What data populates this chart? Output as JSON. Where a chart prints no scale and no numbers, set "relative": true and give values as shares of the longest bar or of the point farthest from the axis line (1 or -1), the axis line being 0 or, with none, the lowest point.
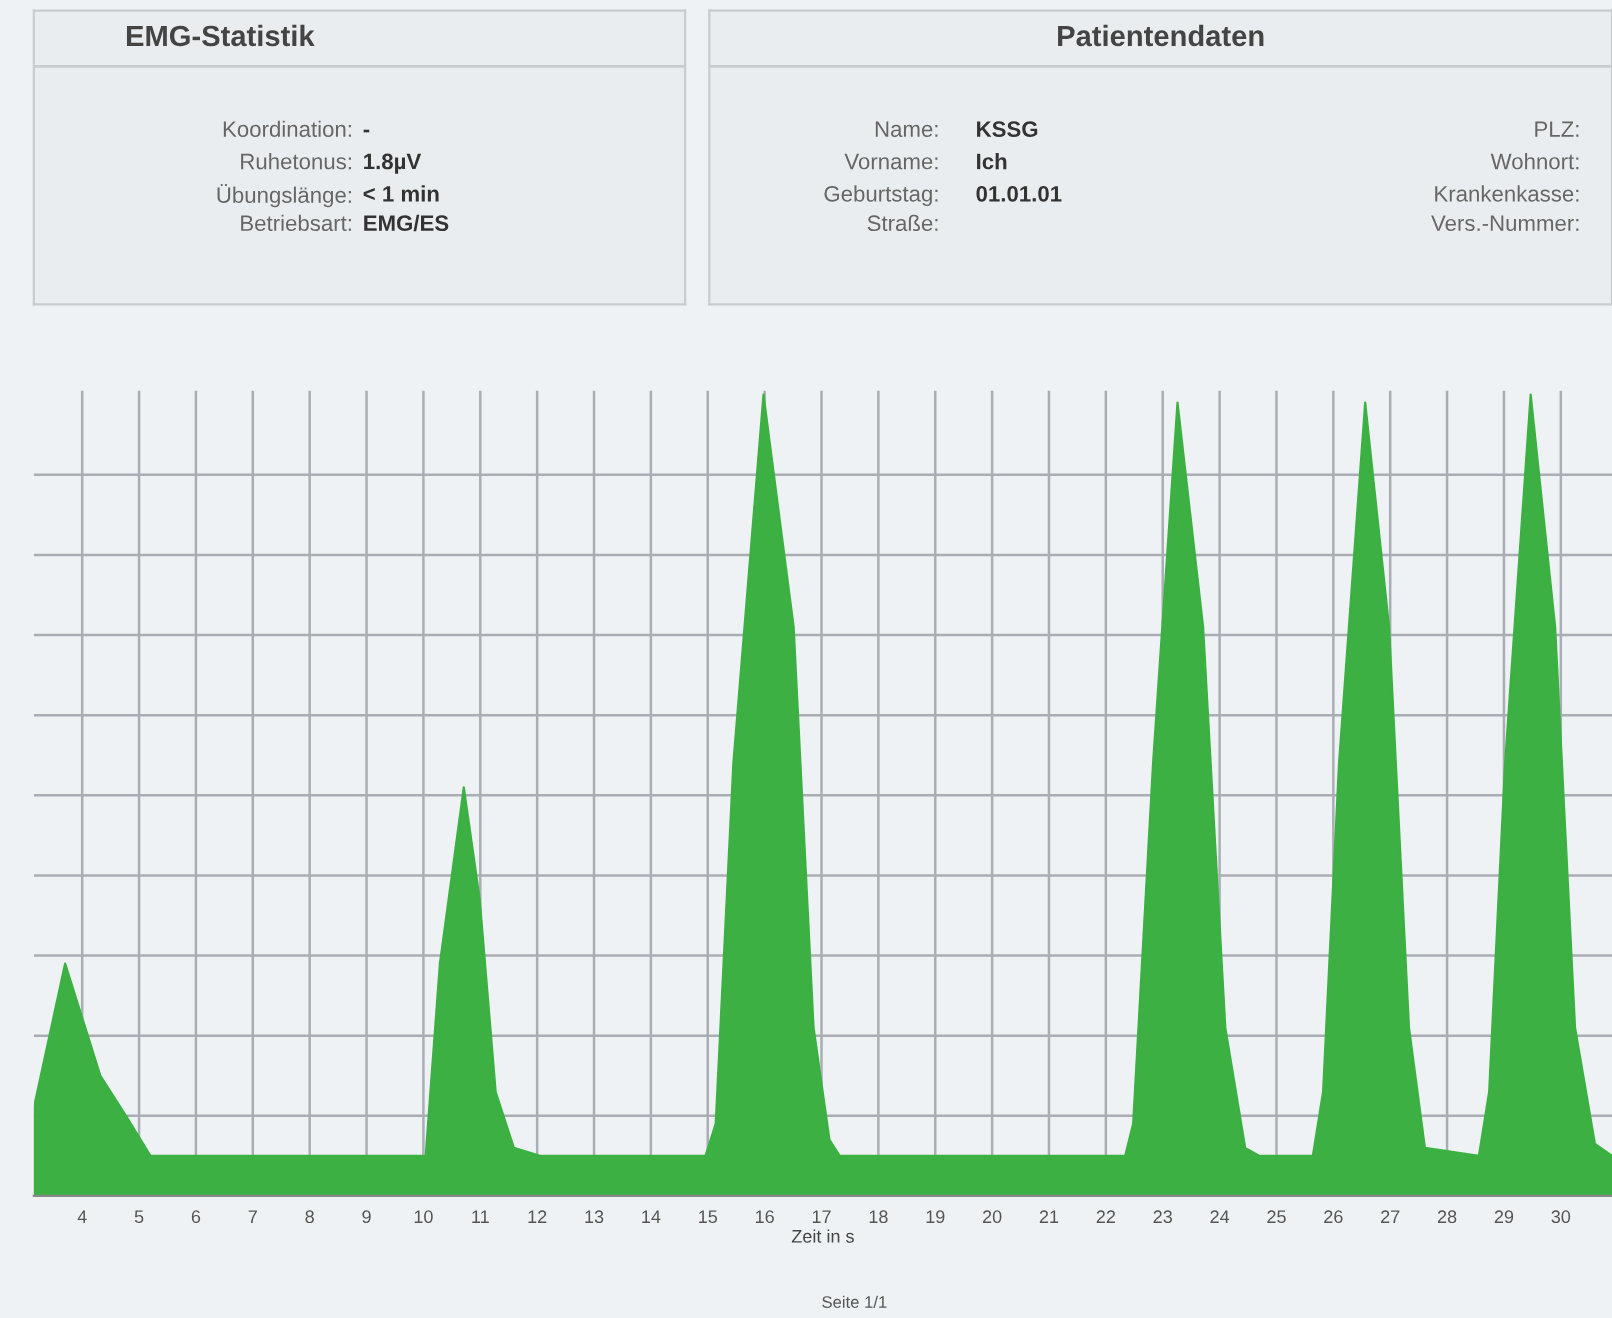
{
  "chart_data": [
    {
      "type": "other",
      "title": "EMG-Statistik",
      "annotations": [
        "Koordination:",
        "-",
        "Ruhetonus:",
        "1.8µV",
        "Übungslänge:",
        "< 1 min",
        "Betriebsart:",
        "EMG/ES"
      ]
    },
    {
      "type": "other",
      "title": "Patientendaten",
      "annotations": [
        "Name:",
        "KSSG",
        "Vorname:",
        "Ich",
        "Geburtstag:",
        "01.01.01",
        "Straße:",
        "PLZ:",
        "Wohnort:",
        "Krankenkasse:",
        "Vers.-Nummer:"
      ]
    },
    {
      "type": "area",
      "relative": true,
      "xlabel": "Zeit in s",
      "annotations": [
        "Seite 1/1"
      ],
      "grid": true,
      "xlim": [
        3.15,
        30.9
      ],
      "xticks": [
        4,
        5,
        6,
        7,
        8,
        9,
        10,
        11,
        12,
        13,
        14,
        15,
        16,
        17,
        18,
        19,
        20,
        21,
        22,
        23,
        24,
        25,
        26,
        27,
        28,
        29,
        30
      ],
      "x": [
        3.15,
        3.7,
        4.32,
        4.77,
        5.2,
        6.5,
        8.0,
        9.94,
        10.04,
        10.29,
        10.71,
        10.99,
        11.27,
        11.59,
        12.05,
        13.5,
        14.96,
        15.14,
        15.45,
        15.98,
        16.51,
        16.86,
        17.14,
        17.32,
        19.0,
        20.5,
        22.34,
        22.48,
        22.83,
        23.26,
        23.71,
        24.1,
        24.45,
        24.7,
        25.64,
        25.82,
        26.1,
        26.56,
        26.98,
        27.33,
        27.61,
        28.56,
        28.74,
        29.02,
        29.47,
        29.9,
        30.25,
        30.6,
        30.9
      ],
      "series": [
        {
          "color": "#3cb043",
          "values": [
            0.11,
            0.29,
            0.15,
            0.1,
            0.05,
            0.05,
            0.05,
            0.05,
            0.05,
            0.29,
            0.51,
            0.37,
            0.13,
            0.06,
            0.05,
            0.05,
            0.05,
            0.09,
            0.54,
            1.0,
            0.71,
            0.21,
            0.07,
            0.05,
            0.05,
            0.05,
            0.05,
            0.09,
            0.54,
            0.99,
            0.71,
            0.21,
            0.06,
            0.05,
            0.05,
            0.13,
            0.54,
            0.99,
            0.71,
            0.21,
            0.06,
            0.05,
            0.13,
            0.54,
            1.0,
            0.71,
            0.21,
            0.065,
            0.05
          ]
        }
      ]
    }
  ]
}
